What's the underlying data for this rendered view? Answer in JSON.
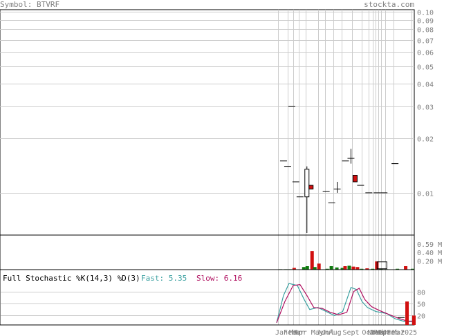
{
  "header": {
    "symbol": "Symbol: BTVRF",
    "site": "stockta.com"
  },
  "colors": {
    "up": "#0f7a0f",
    "down": "#d11010",
    "fast": "#3aa0a0",
    "slow": "#b01060",
    "grid": "#cccccc",
    "frame": "#000000",
    "text": "#808080"
  },
  "chart_data": [
    {
      "type": "candlestick",
      "title": "",
      "scale": "log",
      "ylim": [
        0.006,
        0.1
      ],
      "y_ticks": [
        0.1,
        0.09,
        0.08,
        0.07,
        0.06,
        0.05,
        0.04,
        0.03,
        0.02,
        0.01
      ],
      "y_tick_labels": [
        "0.10",
        "0.09",
        "0.08",
        "0.07",
        "0.06",
        "0.05",
        "0.04",
        "0.03",
        "0.02",
        "0.01"
      ],
      "x_labels": [
        "Jan",
        "Feb",
        "Mar",
        "Mar",
        "Apr",
        "May",
        "Jun",
        "Jul",
        "Aug",
        "Sept",
        "Oct",
        "Nov",
        "Dec",
        "Feb",
        "Mar",
        "Apr",
        "Jan",
        "Feb",
        "Mar",
        "2025"
      ],
      "candles": [
        {
          "t": 0.05,
          "o": 0.015,
          "h": 0.015,
          "l": 0.015,
          "c": 0.015,
          "color": "flat"
        },
        {
          "t": 0.08,
          "o": 0.014,
          "h": 0.014,
          "l": 0.014,
          "c": 0.014,
          "color": "flat"
        },
        {
          "t": 0.11,
          "o": 0.03,
          "h": 0.03,
          "l": 0.03,
          "c": 0.03,
          "color": "flat"
        },
        {
          "t": 0.14,
          "o": 0.0115,
          "h": 0.0115,
          "l": 0.0115,
          "c": 0.0115,
          "color": "flat"
        },
        {
          "t": 0.17,
          "o": 0.0095,
          "h": 0.0095,
          "l": 0.0095,
          "c": 0.0095,
          "color": "flat"
        },
        {
          "t": 0.22,
          "o": 0.0095,
          "h": 0.014,
          "l": 0.006,
          "c": 0.0135,
          "color": "up"
        },
        {
          "t": 0.25,
          "o": 0.011,
          "h": 0.011,
          "l": 0.0105,
          "c": 0.0105,
          "color": "down"
        },
        {
          "t": 0.36,
          "o": 0.0102,
          "h": 0.0102,
          "l": 0.0102,
          "c": 0.0102,
          "color": "flat"
        },
        {
          "t": 0.4,
          "o": 0.0088,
          "h": 0.0088,
          "l": 0.0088,
          "c": 0.0088,
          "color": "flat"
        },
        {
          "t": 0.44,
          "o": 0.0105,
          "h": 0.0115,
          "l": 0.01,
          "c": 0.0105,
          "color": "flat"
        },
        {
          "t": 0.5,
          "o": 0.015,
          "h": 0.015,
          "l": 0.015,
          "c": 0.015,
          "color": "flat"
        },
        {
          "t": 0.54,
          "o": 0.0155,
          "h": 0.0175,
          "l": 0.0145,
          "c": 0.0155,
          "color": "flat"
        },
        {
          "t": 0.57,
          "o": 0.0125,
          "h": 0.0125,
          "l": 0.0115,
          "c": 0.0115,
          "color": "down"
        },
        {
          "t": 0.61,
          "o": 0.011,
          "h": 0.011,
          "l": 0.011,
          "c": 0.011,
          "color": "flat"
        },
        {
          "t": 0.67,
          "o": 0.01,
          "h": 0.01,
          "l": 0.01,
          "c": 0.01,
          "color": "flat"
        },
        {
          "t": 0.73,
          "o": 0.01,
          "h": 0.01,
          "l": 0.01,
          "c": 0.01,
          "color": "flat"
        },
        {
          "t": 0.78,
          "o": 0.01,
          "h": 0.01,
          "l": 0.01,
          "c": 0.01,
          "color": "flat"
        },
        {
          "t": 0.86,
          "o": 0.0145,
          "h": 0.0145,
          "l": 0.0145,
          "c": 0.0145,
          "color": "flat"
        }
      ]
    },
    {
      "type": "bar",
      "title": "",
      "ylim": [
        0,
        0.8
      ],
      "y_tick_labels": [
        "0.59 M",
        "0.40 M",
        "0.20 M"
      ],
      "y_ticks": [
        0.59,
        0.4,
        0.2
      ],
      "bars": [
        {
          "t": 0.03,
          "v": 0.01,
          "color": "up"
        },
        {
          "t": 0.07,
          "v": 0.01,
          "color": "up"
        },
        {
          "t": 0.1,
          "v": 0.01,
          "color": "up"
        },
        {
          "t": 0.13,
          "v": 0.04,
          "color": "down"
        },
        {
          "t": 0.2,
          "v": 0.06,
          "color": "up"
        },
        {
          "t": 0.225,
          "v": 0.08,
          "color": "up"
        },
        {
          "t": 0.26,
          "v": 0.43,
          "color": "down"
        },
        {
          "t": 0.28,
          "v": 0.06,
          "color": "up"
        },
        {
          "t": 0.31,
          "v": 0.14,
          "color": "down"
        },
        {
          "t": 0.37,
          "v": 0.02,
          "color": "up"
        },
        {
          "t": 0.4,
          "v": 0.08,
          "color": "up"
        },
        {
          "t": 0.44,
          "v": 0.05,
          "color": "up"
        },
        {
          "t": 0.48,
          "v": 0.04,
          "color": "up"
        },
        {
          "t": 0.5,
          "v": 0.08,
          "color": "down"
        },
        {
          "t": 0.53,
          "v": 0.09,
          "color": "up"
        },
        {
          "t": 0.56,
          "v": 0.07,
          "color": "down"
        },
        {
          "t": 0.59,
          "v": 0.06,
          "color": "down"
        },
        {
          "t": 0.62,
          "v": 0.02,
          "color": "up"
        },
        {
          "t": 0.66,
          "v": 0.03,
          "color": "down"
        },
        {
          "t": 0.7,
          "v": 0.02,
          "color": "up"
        },
        {
          "t": 0.73,
          "v": 0.19,
          "color": "down"
        },
        {
          "t": 0.76,
          "v": 0.02,
          "color": "up"
        },
        {
          "t": 0.8,
          "v": 0.01,
          "color": "up"
        },
        {
          "t": 0.88,
          "v": 0.02,
          "color": "up"
        },
        {
          "t": 0.94,
          "v": 0.08,
          "color": "down"
        },
        {
          "t": 0.99,
          "v": 0.02,
          "color": "up"
        }
      ]
    },
    {
      "type": "line",
      "title": "Full Stochastic %K(14,3) %D(3)",
      "fast_label": "Fast: 5.35",
      "slow_label": "Slow: 6.16",
      "ylim": [
        0,
        100
      ],
      "y_ticks": [
        80,
        50,
        20
      ],
      "y_tick_labels": [
        "80",
        "50",
        "20"
      ],
      "series": [
        {
          "name": "Fast",
          "t": [
            0.0,
            0.05,
            0.09,
            0.15,
            0.2,
            0.24,
            0.3,
            0.36,
            0.42,
            0.48,
            0.54,
            0.58,
            0.62,
            0.66,
            0.72,
            0.8,
            0.86,
            0.93,
            1.0
          ],
          "values": [
            2,
            70,
            100,
            95,
            60,
            35,
            40,
            30,
            20,
            30,
            90,
            85,
            55,
            40,
            30,
            25,
            12,
            5,
            5
          ]
        },
        {
          "name": "Slow",
          "t": [
            0.0,
            0.06,
            0.12,
            0.17,
            0.22,
            0.27,
            0.33,
            0.39,
            0.45,
            0.51,
            0.56,
            0.6,
            0.64,
            0.69,
            0.75,
            0.82,
            0.88,
            0.95,
            1.0
          ],
          "values": [
            2,
            55,
            95,
            97,
            70,
            40,
            38,
            28,
            22,
            28,
            80,
            88,
            60,
            42,
            32,
            22,
            14,
            6,
            6
          ]
        }
      ],
      "stoch_bars": [
        {
          "t": 0.95,
          "v": 55,
          "color": "down"
        },
        {
          "t": 1.0,
          "v": 20,
          "color": "down"
        }
      ]
    }
  ]
}
